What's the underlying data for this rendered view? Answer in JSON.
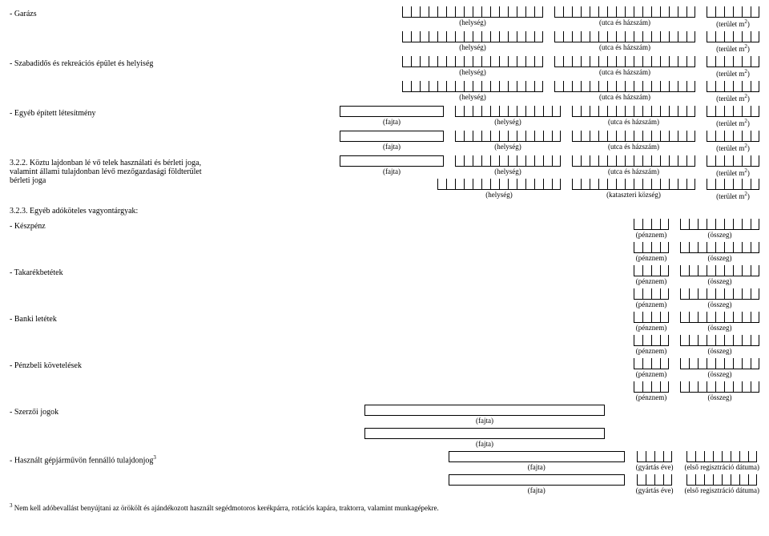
{
  "labels": {
    "garazs": "- Garázs",
    "szabadidos": "- Szabadidős és rekreációs épület és helyiség",
    "egyeb_epitett": "- Egyéb épített létesítmény",
    "koztu_section": "3.2.2. Köztu lajdonban lé vő telek használati és bérleti joga, valamint állami tulajdonban lévő mezőgazdasági földterület bérleti joga",
    "egyeb_adokoteles": "3.2.3. Egyéb adóköteles vagyontárgyak:",
    "keszpenz": "- Készpénz",
    "takarek": "- Takarékbetétek",
    "banki": "- Banki letétek",
    "penzbeli": "- Pénzbeli követelések",
    "szerzoi": "- Szerzői jogok",
    "hasznalt": "- Használt gépjárművön fennálló tulajdonjog"
  },
  "captions": {
    "helyseg": "(helység)",
    "utca": "(utca és házszám)",
    "terulet": "(terület m",
    "fajta": "(fajta)",
    "kataszteri": "(kataszteri község)",
    "penznem": "(pénznem)",
    "osszeg": "(összeg)",
    "gyartas": "(gyártás éve)",
    "regisztracio": "(első regisztráció dátuma)"
  },
  "footnote_sup": "3",
  "footnote": "Nem kell adóbevallást benyújtani az örökölt és ajándékozott használt segédmotoros kerékpárra, rotációs kapára, traktorra, valamint munkagépekre."
}
